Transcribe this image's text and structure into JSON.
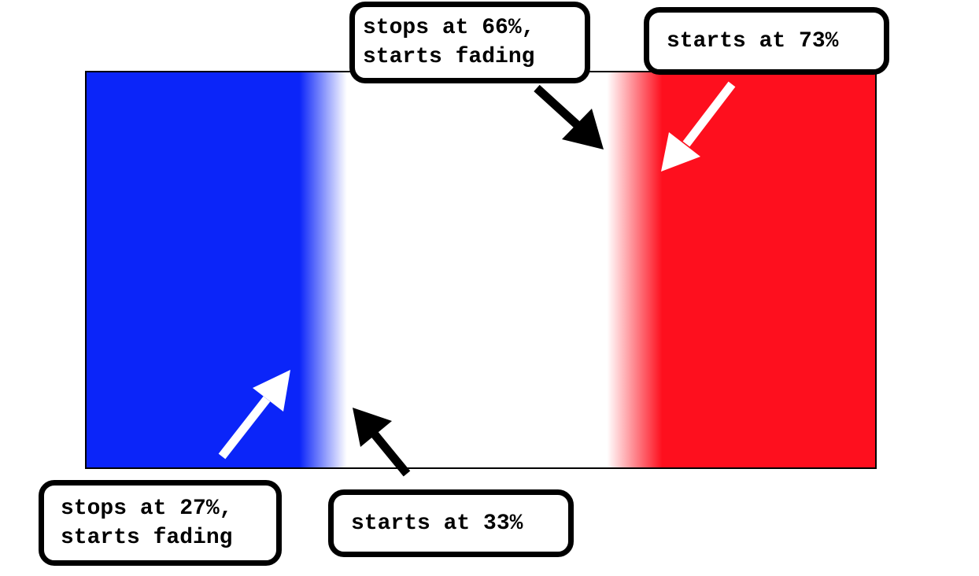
{
  "colors": {
    "blue": "#0b25f9",
    "white": "#ffffff",
    "red": "#fe0f1e",
    "outline": "#000000",
    "arrow_on_color": "#ffffff",
    "arrow_on_white": "#000000"
  },
  "gradient_stops_percent": {
    "blue_stop": 27,
    "white_start": 33,
    "white_stop": 66,
    "red_start": 73
  },
  "callouts": {
    "stop66": "stops at 66%,\nstarts fading",
    "start73": "starts at 73%",
    "stop27": "stops at 27%,\nstarts fading",
    "start33": "starts at 33%"
  }
}
